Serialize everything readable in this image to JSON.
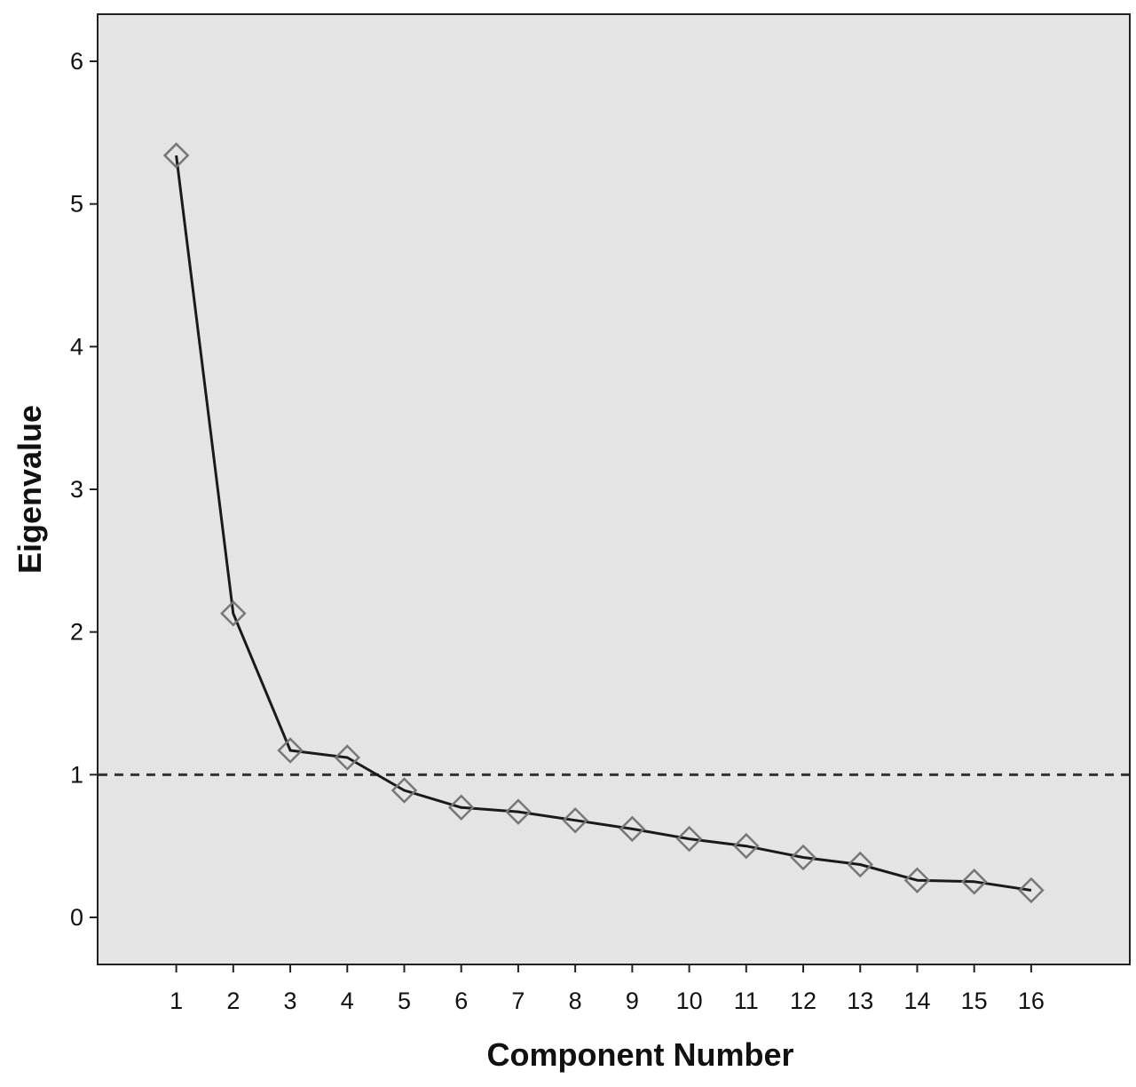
{
  "chart_data": {
    "type": "line",
    "title": "",
    "xlabel": "Component Number",
    "ylabel": "Eigenvalue",
    "x": [
      1,
      2,
      3,
      4,
      5,
      6,
      7,
      8,
      9,
      10,
      11,
      12,
      13,
      14,
      15,
      16
    ],
    "series": [
      {
        "values": [
          5.34,
          2.13,
          1.17,
          1.12,
          0.89,
          0.77,
          0.74,
          0.68,
          0.62,
          0.55,
          0.5,
          0.42,
          0.37,
          0.26,
          0.25,
          0.19
        ],
        "marker": "diamond",
        "color": "#1a1a1a",
        "marker_color": "#777777"
      }
    ],
    "xticks": [
      "1",
      "2",
      "3",
      "4",
      "5",
      "6",
      "7",
      "8",
      "9",
      "10",
      "11",
      "12",
      "13",
      "14",
      "15",
      "16"
    ],
    "yticks": [
      "0",
      "1",
      "2",
      "3",
      "4",
      "5",
      "6"
    ],
    "xlim": [
      -0.38,
      17.73
    ],
    "ylim": [
      -0.33,
      6.33
    ],
    "reference_line": {
      "y": 1,
      "style": "dashed",
      "color": "#333333"
    },
    "grid": false,
    "legend": "none",
    "plot_background": "#e6e6e6"
  }
}
